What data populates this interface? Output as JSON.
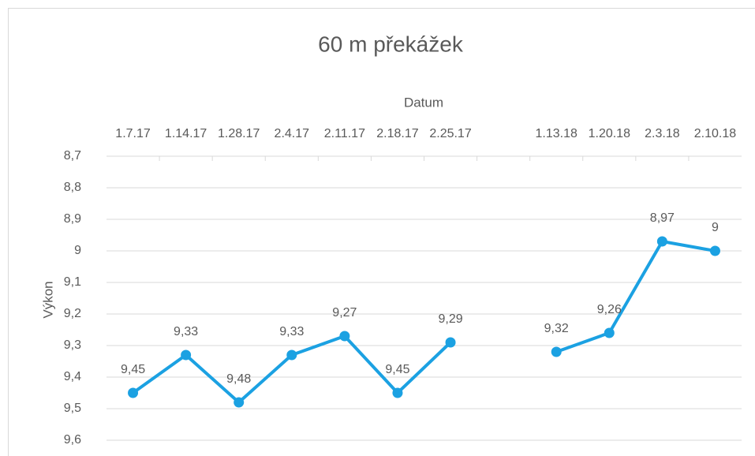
{
  "chart_data": {
    "type": "line",
    "title": "60 m překážek",
    "x_label": "Datum",
    "y_label": "Výkon",
    "categories": [
      "1.7.17",
      "1.14.17",
      "1.28.17",
      "2.4.17",
      "2.11.17",
      "2.18.17",
      "2.25.17",
      null,
      "1.13.18",
      "1.20.18",
      "2.3.18",
      "2.10.18"
    ],
    "series": [
      {
        "name": "Výkon",
        "color": "#1ba1e2",
        "values": [
          9.45,
          9.33,
          9.48,
          9.33,
          9.27,
          9.45,
          9.29,
          null,
          9.32,
          9.26,
          8.97,
          9
        ],
        "value_labels": [
          "9,45",
          "9,33",
          "9,48",
          "9,33",
          "9,27",
          "9,45",
          "9,29",
          null,
          "9,32",
          "9,26",
          "8,97",
          "9"
        ]
      }
    ],
    "ylim": [
      8.7,
      9.6
    ],
    "y_reversed": true,
    "yticks": [
      {
        "value": 8.7,
        "label": "8,7"
      },
      {
        "value": 8.8,
        "label": "8,8"
      },
      {
        "value": 8.9,
        "label": "8,9"
      },
      9,
      {
        "value": 9.1,
        "label": "9,1"
      },
      {
        "value": 9.2,
        "label": "9,2"
      },
      {
        "value": 9.3,
        "label": "9,3"
      },
      {
        "value": 9.4,
        "label": "9,4"
      },
      {
        "value": 9.5,
        "label": "9,5"
      },
      {
        "value": 9.6,
        "label": "9,6"
      }
    ],
    "grid": true
  }
}
